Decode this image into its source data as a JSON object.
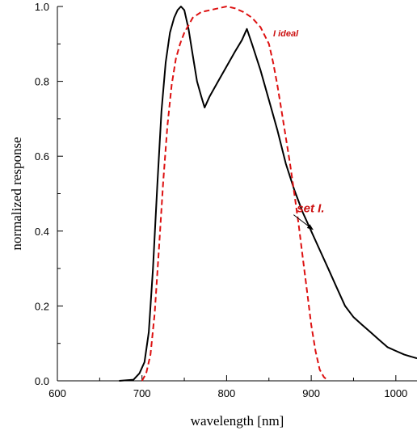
{
  "chart_data": {
    "type": "line",
    "xlabel": "wavelength [nm]",
    "ylabel": "normalized response",
    "xlim": [
      600,
      1025
    ],
    "ylim": [
      0,
      1.0
    ],
    "xticks": [
      600,
      700,
      800,
      900,
      1000
    ],
    "yticks": [
      0.0,
      0.2,
      0.4,
      0.6,
      0.8,
      1.0
    ],
    "xtick_labels": [
      "600",
      "700",
      "800",
      "900",
      "1000"
    ],
    "ytick_labels": [
      "0.0",
      "0.2",
      "0.4",
      "0.6",
      "0.8",
      "1.0"
    ],
    "grid": false,
    "series": [
      {
        "label": "set I.",
        "color": "#000000",
        "dash": "solid",
        "x": [
          673,
          690,
          697,
          703,
          708,
          713,
          718,
          723,
          728,
          733,
          738,
          742,
          746,
          750,
          755,
          760,
          765,
          770,
          774,
          780,
          790,
          800,
          810,
          818,
          824,
          830,
          840,
          850,
          860,
          870,
          880,
          890,
          900,
          910,
          920,
          930,
          940,
          950,
          960,
          970,
          980,
          990,
          1000,
          1010,
          1025
        ],
        "y": [
          0.0,
          0.003,
          0.02,
          0.05,
          0.13,
          0.3,
          0.52,
          0.72,
          0.85,
          0.93,
          0.97,
          0.99,
          1.0,
          0.99,
          0.94,
          0.87,
          0.8,
          0.76,
          0.73,
          0.76,
          0.8,
          0.84,
          0.88,
          0.91,
          0.94,
          0.9,
          0.83,
          0.75,
          0.67,
          0.58,
          0.51,
          0.45,
          0.4,
          0.35,
          0.3,
          0.25,
          0.2,
          0.17,
          0.15,
          0.13,
          0.11,
          0.09,
          0.08,
          0.07,
          0.06
        ]
      },
      {
        "label": "I ideal",
        "color": "#dd1111",
        "dash": "dashed",
        "x": [
          700,
          705,
          710,
          715,
          720,
          725,
          730,
          735,
          740,
          745,
          750,
          755,
          760,
          770,
          780,
          790,
          800,
          810,
          820,
          830,
          840,
          850,
          855,
          860,
          865,
          870,
          875,
          880,
          885,
          890,
          895,
          900,
          905,
          910,
          915,
          920
        ],
        "y": [
          0.0,
          0.02,
          0.07,
          0.18,
          0.35,
          0.53,
          0.68,
          0.79,
          0.86,
          0.9,
          0.93,
          0.95,
          0.97,
          0.985,
          0.99,
          0.995,
          1.0,
          0.995,
          0.985,
          0.97,
          0.945,
          0.9,
          0.85,
          0.79,
          0.72,
          0.65,
          0.58,
          0.5,
          0.42,
          0.33,
          0.24,
          0.15,
          0.08,
          0.03,
          0.01,
          0.0
        ]
      }
    ],
    "annotations": [
      {
        "text": "I ideal",
        "x": 855,
        "y": 0.92,
        "color": "#cc1111"
      },
      {
        "text": "set I.",
        "x": 883,
        "y": 0.45,
        "color": "#cc1111",
        "arrow_to": [
          900,
          0.4
        ]
      }
    ]
  }
}
